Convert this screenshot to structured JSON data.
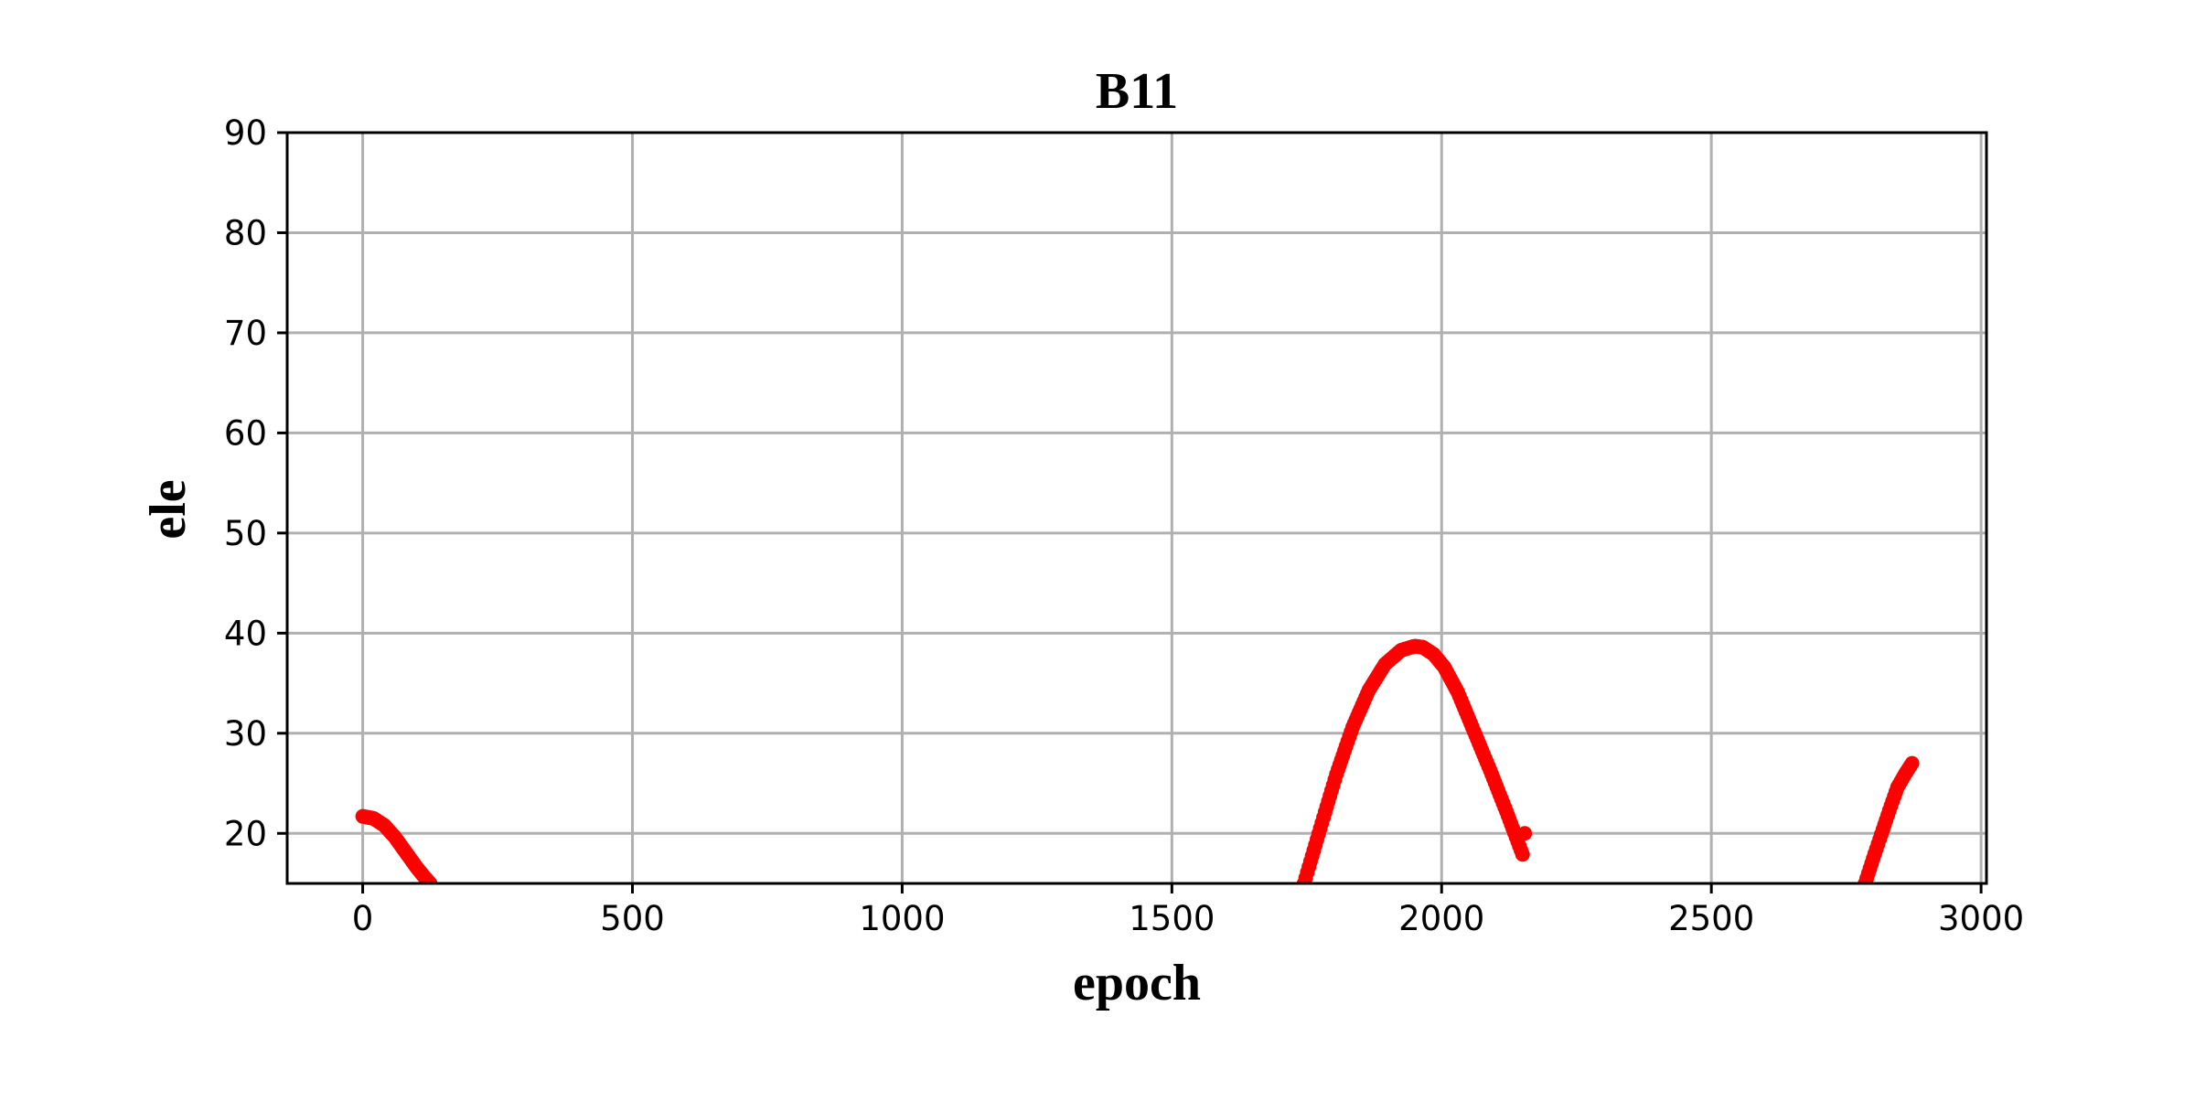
{
  "chart_data": {
    "type": "scatter",
    "title": "B11",
    "xlabel": "epoch",
    "ylabel": "ele",
    "xlim": [
      -140,
      3010
    ],
    "ylim": [
      15,
      90
    ],
    "xticks": [
      0,
      500,
      1000,
      1500,
      2000,
      2500,
      3000
    ],
    "xtick_labels": [
      "0",
      "500",
      "1000",
      "1500",
      "2000",
      "2500",
      "3000"
    ],
    "yticks": [
      20,
      30,
      40,
      50,
      60,
      70,
      80,
      90
    ],
    "ytick_labels": [
      "20",
      "30",
      "40",
      "50",
      "60",
      "70",
      "80",
      "90"
    ],
    "grid": true,
    "marker_color": "#ff0000",
    "series": [
      {
        "segments": [
          {
            "x": [
              0,
              20,
              40,
              60,
              80,
              100,
              115,
              125
            ],
            "y": [
              21.7,
              21.5,
              20.8,
              19.6,
              18.1,
              16.6,
              15.6,
              15.0
            ]
          },
          {
            "x": [
              1745,
              1775,
              1805,
              1835,
              1865,
              1895,
              1925,
              1950,
              1965,
              1985,
              2005,
              2030,
              2060,
              2090,
              2120,
              2150
            ],
            "y": [
              15.0,
              20.5,
              25.9,
              30.6,
              34.3,
              36.9,
              38.3,
              38.7,
              38.6,
              37.9,
              36.6,
              34.1,
              30.2,
              26.3,
              22.2,
              17.9
            ]
          },
          {
            "x": [
              2154
            ],
            "y": [
              20.0
            ]
          },
          {
            "x": [
              2785,
              2800,
              2815,
              2830,
              2845,
              2860,
              2872
            ],
            "y": [
              15.0,
              17.5,
              19.9,
              22.3,
              24.6,
              26.0,
              27.0
            ]
          }
        ]
      }
    ]
  }
}
